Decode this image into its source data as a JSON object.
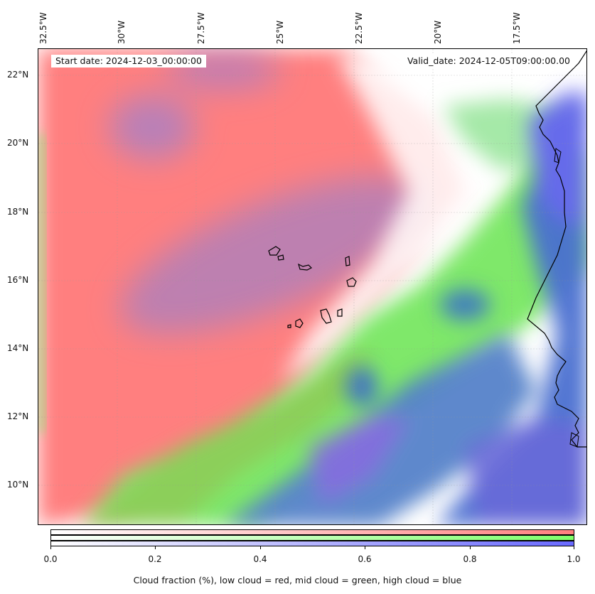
{
  "map": {
    "start_date": "Start date: 2024-12-03_00:00:00",
    "valid_date": "Valid_date: 2024-12-05T09:00:00.00",
    "lon_labels": [
      "32.5°W",
      "30°W",
      "27.5°W",
      "25°W",
      "22.5°W",
      "20°W",
      "17.5°W"
    ],
    "lat_labels": [
      "22°N",
      "20°N",
      "18°N",
      "16°N",
      "14°N",
      "12°N",
      "10°N"
    ],
    "colors": {
      "low_cloud": "#ff7f7f",
      "mid_cloud": "#7fe86a",
      "high_cloud": "#6060e0",
      "mixed_low_high": "#a07aba",
      "low_mid": "#8ccf5a",
      "mid_high": "#3f7fc0"
    }
  },
  "colorbar": {
    "ticks": [
      "0.0",
      "0.2",
      "0.4",
      "0.6",
      "0.8",
      "1.0"
    ],
    "caption": "Cloud fraction (%), low cloud = red, mid cloud = green, high cloud = blue",
    "low_color": "#ff7f7f",
    "mid_color": "#7fff6a",
    "high_color": "#6a6aff"
  }
}
